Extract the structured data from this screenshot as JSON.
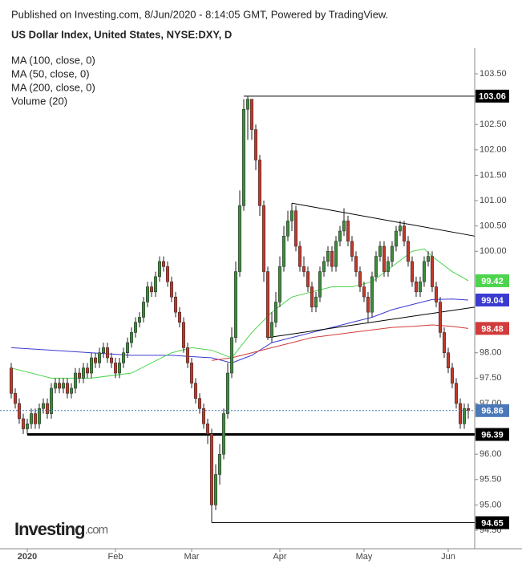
{
  "chart_data": {
    "type": "candlestick",
    "header": "Published on Investing.com, 8/Jun/2020 - 8:14:05 GMT, Powered by TradingView.",
    "title": "US Dollar Index, United States, NYSE:DXY, D",
    "legend_extra": "Volume (20)",
    "logo": [
      "Investing",
      ".com"
    ],
    "up_color": "#3d8b3d",
    "down_color": "#c0392b",
    "ylim": [
      94.3,
      104.0
    ],
    "yticks": [
      {
        "value": 103.5,
        "label": "103.50"
      },
      {
        "value": 102.5,
        "label": "102.50"
      },
      {
        "value": 102,
        "label": "102.00"
      },
      {
        "value": 101.5,
        "label": "101.50"
      },
      {
        "value": 101,
        "label": "101.00"
      },
      {
        "value": 100.5,
        "label": "100.50"
      },
      {
        "value": 100,
        "label": "100.00"
      },
      {
        "value": 98,
        "label": "98.00"
      },
      {
        "value": 97.5,
        "label": "97.50"
      },
      {
        "value": 97,
        "label": "97.00"
      },
      {
        "value": 96,
        "label": "96.00"
      },
      {
        "value": 95.5,
        "label": "95.50"
      },
      {
        "value": 95,
        "label": "95.00"
      },
      {
        "value": 94.5,
        "label": "94.50"
      }
    ],
    "xticks": [
      {
        "value": 4,
        "label": "2020"
      },
      {
        "value": 26,
        "label": "Feb"
      },
      {
        "value": 45,
        "label": "Mar"
      },
      {
        "value": 67,
        "label": "Apr"
      },
      {
        "value": 88,
        "label": "May"
      },
      {
        "value": 109,
        "label": "Jun"
      }
    ],
    "ohlc": [
      [
        97.7,
        97.8,
        97.1,
        97.2
      ],
      [
        97.2,
        97.3,
        96.9,
        97.0
      ],
      [
        97.0,
        97.1,
        96.6,
        96.7
      ],
      [
        96.7,
        96.8,
        96.4,
        96.5
      ],
      [
        96.5,
        96.7,
        96.39,
        96.6
      ],
      [
        96.6,
        96.9,
        96.5,
        96.8
      ],
      [
        96.8,
        96.9,
        96.5,
        96.6
      ],
      [
        96.6,
        97.0,
        96.5,
        96.9
      ],
      [
        96.9,
        97.1,
        96.8,
        97.0
      ],
      [
        97.0,
        97.1,
        96.7,
        96.8
      ],
      [
        96.8,
        97.4,
        96.7,
        97.3
      ],
      [
        97.3,
        97.5,
        97.2,
        97.4
      ],
      [
        97.4,
        97.5,
        97.2,
        97.3
      ],
      [
        97.3,
        97.5,
        97.2,
        97.4
      ],
      [
        97.4,
        97.5,
        97.1,
        97.2
      ],
      [
        97.2,
        97.4,
        97.1,
        97.3
      ],
      [
        97.3,
        97.7,
        97.2,
        97.6
      ],
      [
        97.6,
        97.7,
        97.4,
        97.5
      ],
      [
        97.5,
        97.8,
        97.4,
        97.7
      ],
      [
        97.7,
        97.8,
        97.5,
        97.6
      ],
      [
        97.6,
        98.0,
        97.5,
        97.9
      ],
      [
        97.9,
        98.0,
        97.7,
        97.8
      ],
      [
        97.8,
        98.1,
        97.7,
        98.0
      ],
      [
        98.0,
        98.2,
        97.9,
        98.1
      ],
      [
        98.1,
        98.2,
        97.8,
        97.9
      ],
      [
        97.9,
        98.0,
        97.7,
        97.8
      ],
      [
        97.8,
        97.9,
        97.5,
        97.6
      ],
      [
        97.6,
        97.9,
        97.5,
        97.8
      ],
      [
        97.8,
        98.1,
        97.7,
        98.0
      ],
      [
        98.0,
        98.3,
        97.9,
        98.2
      ],
      [
        98.2,
        98.5,
        98.1,
        98.4
      ],
      [
        98.4,
        98.7,
        98.3,
        98.6
      ],
      [
        98.6,
        98.8,
        98.5,
        98.7
      ],
      [
        98.7,
        99.1,
        98.6,
        99.0
      ],
      [
        99.0,
        99.4,
        98.9,
        99.3
      ],
      [
        99.3,
        99.4,
        99.1,
        99.2
      ],
      [
        99.2,
        99.6,
        99.1,
        99.5
      ],
      [
        99.5,
        99.9,
        99.4,
        99.8
      ],
      [
        99.8,
        99.9,
        99.6,
        99.7
      ],
      [
        99.7,
        99.8,
        99.3,
        99.4
      ],
      [
        99.4,
        99.5,
        99.0,
        99.1
      ],
      [
        99.1,
        99.2,
        98.7,
        98.8
      ],
      [
        98.8,
        98.9,
        98.5,
        98.6
      ],
      [
        98.6,
        98.7,
        98.0,
        98.1
      ],
      [
        98.1,
        98.2,
        97.7,
        97.8
      ],
      [
        97.8,
        97.9,
        97.3,
        97.4
      ],
      [
        97.4,
        97.5,
        97.0,
        97.1
      ],
      [
        97.1,
        97.2,
        96.8,
        96.9
      ],
      [
        96.9,
        97.0,
        96.5,
        96.6
      ],
      [
        96.6,
        96.7,
        96.2,
        96.4
      ],
      [
        96.4,
        96.5,
        94.65,
        95.0
      ],
      [
        95.0,
        95.8,
        94.9,
        95.6
      ],
      [
        95.6,
        96.2,
        95.4,
        96.0
      ],
      [
        96.0,
        96.9,
        95.9,
        96.8
      ],
      [
        96.8,
        97.8,
        96.7,
        97.6
      ],
      [
        97.6,
        98.5,
        97.5,
        98.3
      ],
      [
        98.3,
        99.8,
        98.2,
        99.6
      ],
      [
        99.6,
        101.2,
        99.5,
        100.9
      ],
      [
        100.9,
        103.0,
        100.8,
        102.8
      ],
      [
        102.8,
        103.06,
        102.2,
        103.0
      ],
      [
        103.0,
        103.0,
        102.2,
        102.4
      ],
      [
        102.4,
        102.5,
        101.6,
        101.8
      ],
      [
        101.8,
        101.9,
        100.7,
        100.9
      ],
      [
        100.9,
        101.0,
        99.4,
        99.6
      ],
      [
        99.6,
        99.7,
        98.25,
        98.3
      ],
      [
        98.3,
        98.8,
        98.2,
        98.6
      ],
      [
        98.6,
        99.2,
        98.5,
        99.0
      ],
      [
        99.0,
        99.9,
        98.9,
        99.7
      ],
      [
        99.7,
        100.5,
        99.6,
        100.3
      ],
      [
        100.3,
        100.8,
        100.2,
        100.6
      ],
      [
        100.6,
        100.95,
        100.4,
        100.8
      ],
      [
        100.8,
        100.9,
        100.0,
        100.1
      ],
      [
        100.1,
        100.2,
        99.6,
        99.7
      ],
      [
        99.7,
        99.9,
        99.5,
        99.6
      ],
      [
        99.6,
        99.7,
        99.2,
        99.3
      ],
      [
        99.3,
        99.4,
        98.8,
        98.9
      ],
      [
        98.9,
        99.2,
        98.8,
        99.1
      ],
      [
        99.1,
        99.7,
        99.0,
        99.6
      ],
      [
        99.6,
        99.9,
        99.5,
        99.8
      ],
      [
        99.8,
        100.1,
        99.7,
        100.0
      ],
      [
        100.0,
        100.1,
        99.6,
        99.7
      ],
      [
        99.7,
        100.3,
        99.6,
        100.2
      ],
      [
        100.2,
        100.5,
        100.1,
        100.4
      ],
      [
        100.4,
        100.85,
        100.3,
        100.6
      ],
      [
        100.6,
        100.7,
        100.1,
        100.2
      ],
      [
        100.2,
        100.3,
        99.8,
        99.9
      ],
      [
        99.9,
        100.0,
        99.5,
        99.6
      ],
      [
        99.6,
        99.7,
        99.2,
        99.3
      ],
      [
        99.3,
        99.4,
        99.0,
        99.1
      ],
      [
        99.1,
        99.2,
        98.6,
        98.8
      ],
      [
        98.8,
        99.6,
        98.7,
        99.5
      ],
      [
        99.5,
        100.0,
        99.4,
        99.9
      ],
      [
        99.9,
        100.2,
        99.8,
        100.1
      ],
      [
        100.1,
        100.2,
        99.5,
        99.6
      ],
      [
        99.6,
        99.9,
        99.5,
        99.8
      ],
      [
        99.8,
        100.2,
        99.7,
        100.1
      ],
      [
        100.1,
        100.5,
        100.0,
        100.4
      ],
      [
        100.4,
        100.6,
        100.3,
        100.5
      ],
      [
        100.5,
        100.6,
        100.1,
        100.2
      ],
      [
        100.2,
        100.3,
        99.7,
        99.8
      ],
      [
        99.8,
        99.9,
        99.3,
        99.4
      ],
      [
        99.4,
        99.5,
        99.1,
        99.2
      ],
      [
        99.2,
        99.5,
        99.1,
        99.4
      ],
      [
        99.4,
        99.9,
        99.3,
        99.8
      ],
      [
        99.8,
        100.0,
        99.7,
        99.9
      ],
      [
        99.9,
        100.0,
        99.2,
        99.3
      ],
      [
        99.3,
        99.4,
        98.9,
        99.0
      ],
      [
        99.0,
        99.1,
        98.3,
        98.4
      ],
      [
        98.4,
        98.5,
        97.9,
        98.0
      ],
      [
        98.0,
        98.1,
        97.6,
        97.7
      ],
      [
        97.7,
        97.8,
        97.3,
        97.4
      ],
      [
        97.4,
        97.5,
        96.9,
        97.0
      ],
      [
        97.0,
        97.1,
        96.5,
        96.6
      ],
      [
        96.6,
        97.0,
        96.5,
        96.9
      ],
      [
        96.9,
        97.0,
        96.7,
        96.86
      ]
    ],
    "series": [
      {
        "name": "MA (100, close, 0)",
        "color": "#3b3bd1",
        "x": [
          0,
          10,
          20,
          30,
          40,
          50,
          55,
          60,
          65,
          70,
          75,
          80,
          85,
          90,
          95,
          100,
          105,
          110,
          114
        ],
        "values": [
          98.1,
          98.05,
          98.0,
          97.95,
          97.95,
          97.9,
          97.8,
          97.95,
          98.2,
          98.3,
          98.4,
          98.5,
          98.6,
          98.7,
          98.85,
          98.95,
          99.05,
          99.06,
          99.04
        ]
      },
      {
        "name": "MA (50, close, 0)",
        "color": "#4cd44c",
        "x": [
          0,
          10,
          20,
          30,
          40,
          45,
          50,
          55,
          60,
          65,
          70,
          75,
          80,
          85,
          90,
          95,
          100,
          103,
          105,
          110,
          114
        ],
        "values": [
          97.7,
          97.5,
          97.5,
          97.6,
          98.0,
          98.1,
          98.05,
          97.9,
          98.4,
          98.8,
          99.1,
          99.2,
          99.3,
          99.3,
          99.4,
          99.7,
          100.0,
          100.05,
          99.9,
          99.6,
          99.42
        ]
      },
      {
        "name": "MA (200, close, 0)",
        "color": "#d13b3b",
        "x": [
          50,
          55,
          60,
          65,
          70,
          75,
          80,
          85,
          90,
          95,
          100,
          105,
          110,
          114
        ],
        "values": [
          97.85,
          97.9,
          98.0,
          98.1,
          98.2,
          98.3,
          98.35,
          98.4,
          98.45,
          98.5,
          98.52,
          98.55,
          98.52,
          98.48
        ]
      }
    ],
    "trendlines": [
      {
        "x": [
          70,
          115.6
        ],
        "y": [
          100.95,
          100.3
        ]
      },
      {
        "x": [
          64,
          115.6
        ],
        "y": [
          98.3,
          98.9
        ]
      }
    ],
    "levels": [
      {
        "value": 103.06,
        "start": 58,
        "width": 1
      },
      {
        "value": 96.39,
        "start": 4,
        "width": 3
      },
      {
        "value": 94.65,
        "start": 50,
        "width": 1
      }
    ],
    "price_labels": [
      {
        "value": 103.06,
        "color": "#000000"
      },
      {
        "value": 99.42,
        "color": "#4cd44c"
      },
      {
        "value": 99.04,
        "color": "#3b3bd1"
      },
      {
        "value": 98.48,
        "color": "#d13b3b"
      },
      {
        "value": 96.86,
        "color": "#4a78b8",
        "line": "dotted"
      },
      {
        "value": 96.39,
        "color": "#000000"
      },
      {
        "value": 94.65,
        "color": "#000000"
      }
    ]
  }
}
